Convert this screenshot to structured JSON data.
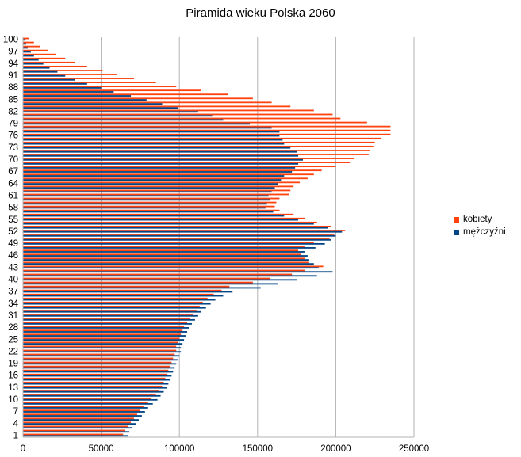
{
  "chart_data": {
    "type": "bar",
    "orientation": "horizontal",
    "title": "Piramida wieku Polska 2060",
    "xlabel": "",
    "ylabel": "",
    "xlim": [
      0,
      250000
    ],
    "x_ticks": [
      0,
      50000,
      100000,
      150000,
      200000,
      250000
    ],
    "x_tick_labels": [
      "0",
      "50000",
      "100000",
      "150000",
      "200000",
      "250000"
    ],
    "y_tick_labels": [
      "1",
      "4",
      "7",
      "10",
      "13",
      "16",
      "19",
      "22",
      "25",
      "28",
      "31",
      "34",
      "37",
      "40",
      "43",
      "46",
      "49",
      "52",
      "55",
      "58",
      "61",
      "64",
      "67",
      "70",
      "73",
      "76",
      "79",
      "82",
      "85",
      "88",
      "91",
      "94",
      "97",
      "100"
    ],
    "grid": true,
    "legend_position": "right",
    "categories": [
      1,
      2,
      3,
      4,
      5,
      6,
      7,
      8,
      9,
      10,
      11,
      12,
      13,
      14,
      15,
      16,
      17,
      18,
      19,
      20,
      21,
      22,
      23,
      24,
      25,
      26,
      27,
      28,
      29,
      30,
      31,
      32,
      33,
      34,
      35,
      36,
      37,
      38,
      39,
      40,
      41,
      42,
      43,
      44,
      45,
      46,
      47,
      48,
      49,
      50,
      51,
      52,
      53,
      54,
      55,
      56,
      57,
      58,
      59,
      60,
      61,
      62,
      63,
      64,
      65,
      66,
      67,
      68,
      69,
      70,
      71,
      72,
      73,
      74,
      75,
      76,
      77,
      78,
      79,
      80,
      81,
      82,
      83,
      84,
      85,
      86,
      87,
      88,
      89,
      90,
      91,
      92,
      93,
      94,
      95,
      96,
      97,
      98,
      99,
      100
    ],
    "series": [
      {
        "name": "kobiety",
        "color": "#ff420e",
        "values": [
          64000,
          65000,
          67000,
          69000,
          71000,
          73000,
          75000,
          77000,
          80000,
          82000,
          85000,
          87000,
          89000,
          90000,
          91000,
          92000,
          93000,
          94000,
          95000,
          96000,
          97000,
          98000,
          98000,
          99000,
          100000,
          101000,
          102000,
          103000,
          105000,
          107000,
          109000,
          111000,
          113000,
          115000,
          118000,
          122000,
          127000,
          132000,
          147000,
          158000,
          172000,
          180000,
          192000,
          183000,
          180000,
          178000,
          176000,
          180000,
          186000,
          196000,
          199000,
          206000,
          197000,
          188000,
          180000,
          173000,
          164000,
          161000,
          162000,
          164000,
          170000,
          171000,
          173000,
          177000,
          182000,
          186000,
          191000,
          200000,
          209000,
          212000,
          221000,
          222000,
          224000,
          225000,
          229000,
          235000,
          235000,
          235000,
          220000,
          203000,
          198000,
          186000,
          171000,
          159000,
          147000,
          131000,
          114000,
          98000,
          85000,
          71000,
          60000,
          51000,
          41000,
          33000,
          27000,
          21000,
          16000,
          11000,
          7000,
          4000
        ]
      },
      {
        "name": "mężczyźni",
        "color": "#004586",
        "values": [
          67000,
          68000,
          70000,
          72000,
          74000,
          76000,
          78000,
          80000,
          83000,
          86000,
          88000,
          90000,
          92000,
          93000,
          94000,
          95000,
          96000,
          97000,
          98000,
          99000,
          100000,
          101000,
          101000,
          102000,
          103000,
          104000,
          105000,
          106000,
          108000,
          110000,
          112000,
          114000,
          117000,
          120000,
          123000,
          128000,
          134000,
          152000,
          163000,
          175000,
          188000,
          198000,
          189000,
          186000,
          183000,
          182000,
          180000,
          187000,
          193000,
          197000,
          200000,
          204000,
          195000,
          186000,
          176000,
          167000,
          160000,
          155000,
          156000,
          158000,
          157000,
          159000,
          161000,
          163000,
          165000,
          167000,
          172000,
          174000,
          176000,
          179000,
          176000,
          175000,
          171000,
          167000,
          166000,
          164000,
          164000,
          159000,
          145000,
          128000,
          121000,
          112000,
          99000,
          89000,
          79000,
          69000,
          58000,
          50000,
          41000,
          33000,
          27000,
          22000,
          17000,
          13000,
          10000,
          7000,
          5000,
          3000,
          2000,
          1000
        ]
      }
    ]
  }
}
